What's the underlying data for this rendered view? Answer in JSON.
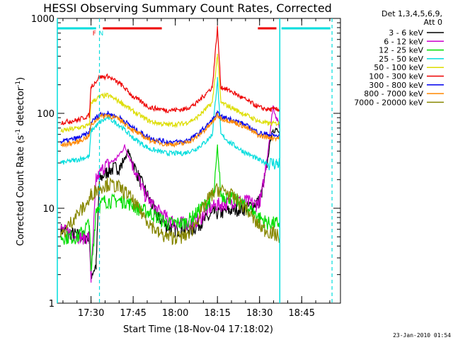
{
  "chart_data": {
    "type": "line",
    "title": "HESSI Observing Summary Count Rates, Corrected",
    "xlabel": "Start Time (18-Nov-04 17:18:02)",
    "ylabel_main": "Corrected Count Rate (s",
    "ylabel_sup1": "-1",
    "ylabel_mid": " detector",
    "ylabel_sup2": "-1",
    "ylabel_end": ")",
    "yscale": "log",
    "ylim": [
      1,
      1000
    ],
    "y_ticks": [
      {
        "value": 1,
        "label": "1"
      },
      {
        "value": 10,
        "label": "10"
      },
      {
        "value": 100,
        "label": "100"
      },
      {
        "value": 1000,
        "label": "1000"
      }
    ],
    "xlim_minutes": [
      17.3,
      18.98
    ],
    "x_ticks": [
      {
        "hour": 17.5,
        "label": "17:30"
      },
      {
        "hour": 17.75,
        "label": "17:45"
      },
      {
        "hour": 18.0,
        "label": "18:00"
      },
      {
        "hour": 18.25,
        "label": "18:15"
      },
      {
        "hour": 18.5,
        "label": "18:30"
      },
      {
        "hour": 18.75,
        "label": "18:45"
      }
    ],
    "legend_header": [
      "Det 1,3,4,5,6,9,",
      "Att 0"
    ],
    "legend_placement": "right",
    "series": [
      {
        "name": "3 - 6 keV",
        "color": "#000000",
        "points": [
          [
            17.32,
            6
          ],
          [
            17.45,
            5
          ],
          [
            17.49,
            5
          ],
          [
            17.5,
            2
          ],
          [
            17.53,
            2.5
          ],
          [
            17.55,
            20
          ],
          [
            17.6,
            25
          ],
          [
            17.68,
            28
          ],
          [
            17.72,
            40
          ],
          [
            17.78,
            22
          ],
          [
            17.85,
            12
          ],
          [
            17.9,
            8
          ],
          [
            17.95,
            6.5
          ],
          [
            18.0,
            6
          ],
          [
            18.05,
            6
          ],
          [
            18.1,
            6
          ],
          [
            18.15,
            7
          ],
          [
            18.2,
            8
          ],
          [
            18.23,
            9
          ],
          [
            18.27,
            9
          ],
          [
            18.32,
            9.5
          ],
          [
            18.38,
            10
          ],
          [
            18.42,
            10
          ],
          [
            18.5,
            12
          ],
          [
            18.53,
            20
          ],
          [
            18.57,
            60
          ],
          [
            18.6,
            70
          ],
          [
            18.62,
            65
          ]
        ]
      },
      {
        "name": "6 - 12 keV",
        "color": "#cc00cc",
        "points": [
          [
            17.32,
            6
          ],
          [
            17.45,
            5
          ],
          [
            17.49,
            5
          ],
          [
            17.5,
            1.8
          ],
          [
            17.53,
            20
          ],
          [
            17.58,
            28
          ],
          [
            17.65,
            33
          ],
          [
            17.7,
            45
          ],
          [
            17.75,
            28
          ],
          [
            17.82,
            14
          ],
          [
            17.88,
            10
          ],
          [
            17.95,
            8
          ],
          [
            18.0,
            7
          ],
          [
            18.05,
            7
          ],
          [
            18.1,
            7
          ],
          [
            18.15,
            8
          ],
          [
            18.2,
            10
          ],
          [
            18.25,
            11
          ],
          [
            18.28,
            11
          ],
          [
            18.35,
            12
          ],
          [
            18.42,
            12
          ],
          [
            18.48,
            11
          ],
          [
            18.51,
            13
          ],
          [
            18.55,
            40
          ],
          [
            18.58,
            120
          ],
          [
            18.6,
            90
          ],
          [
            18.62,
            70
          ]
        ]
      },
      {
        "name": "12 - 25 keV",
        "color": "#00dd00",
        "points": [
          [
            17.32,
            5
          ],
          [
            17.42,
            5
          ],
          [
            17.49,
            7
          ],
          [
            17.5,
            2
          ],
          [
            17.53,
            10
          ],
          [
            17.58,
            12
          ],
          [
            17.65,
            12
          ],
          [
            17.7,
            12
          ],
          [
            17.78,
            10
          ],
          [
            17.85,
            9
          ],
          [
            17.9,
            8
          ],
          [
            17.95,
            7
          ],
          [
            18.0,
            7
          ],
          [
            18.05,
            7
          ],
          [
            18.1,
            8
          ],
          [
            18.15,
            10
          ],
          [
            18.2,
            12
          ],
          [
            18.23,
            14
          ],
          [
            18.25,
            45
          ],
          [
            18.27,
            14
          ],
          [
            18.33,
            13
          ],
          [
            18.4,
            11
          ],
          [
            18.47,
            9
          ],
          [
            18.5,
            8
          ],
          [
            18.55,
            7
          ],
          [
            18.6,
            7
          ],
          [
            18.62,
            7
          ]
        ]
      },
      {
        "name": "25 - 50 keV",
        "color": "#00dddd",
        "points": [
          [
            17.32,
            30
          ],
          [
            17.4,
            32
          ],
          [
            17.49,
            35
          ],
          [
            17.5,
            65
          ],
          [
            17.55,
            80
          ],
          [
            17.6,
            90
          ],
          [
            17.67,
            75
          ],
          [
            17.75,
            55
          ],
          [
            17.85,
            42
          ],
          [
            17.95,
            38
          ],
          [
            18.05,
            38
          ],
          [
            18.12,
            42
          ],
          [
            18.18,
            50
          ],
          [
            18.22,
            60
          ],
          [
            18.25,
            230
          ],
          [
            18.27,
            60
          ],
          [
            18.32,
            50
          ],
          [
            18.4,
            40
          ],
          [
            18.5,
            32
          ],
          [
            18.55,
            30
          ],
          [
            18.6,
            30
          ],
          [
            18.62,
            30
          ]
        ]
      },
      {
        "name": "50 - 100 keV",
        "color": "#dddd00",
        "points": [
          [
            17.32,
            65
          ],
          [
            17.42,
            70
          ],
          [
            17.49,
            75
          ],
          [
            17.5,
            130
          ],
          [
            17.55,
            150
          ],
          [
            17.6,
            155
          ],
          [
            17.68,
            130
          ],
          [
            17.75,
            105
          ],
          [
            17.85,
            82
          ],
          [
            17.95,
            76
          ],
          [
            18.05,
            78
          ],
          [
            18.12,
            88
          ],
          [
            18.18,
            110
          ],
          [
            18.22,
            130
          ],
          [
            18.25,
            420
          ],
          [
            18.27,
            130
          ],
          [
            18.32,
            118
          ],
          [
            18.4,
            100
          ],
          [
            18.5,
            82
          ],
          [
            18.55,
            78
          ],
          [
            18.6,
            78
          ],
          [
            18.62,
            78
          ]
        ]
      },
      {
        "name": "100 - 300 keV",
        "color": "#ee0000",
        "points": [
          [
            17.32,
            80
          ],
          [
            17.42,
            85
          ],
          [
            17.49,
            95
          ],
          [
            17.5,
            190
          ],
          [
            17.55,
            240
          ],
          [
            17.6,
            245
          ],
          [
            17.68,
            200
          ],
          [
            17.75,
            150
          ],
          [
            17.85,
            115
          ],
          [
            17.95,
            108
          ],
          [
            18.05,
            110
          ],
          [
            18.12,
            125
          ],
          [
            18.18,
            160
          ],
          [
            18.22,
            190
          ],
          [
            18.25,
            800
          ],
          [
            18.27,
            190
          ],
          [
            18.32,
            175
          ],
          [
            18.4,
            145
          ],
          [
            18.5,
            115
          ],
          [
            18.55,
            110
          ],
          [
            18.6,
            110
          ],
          [
            18.62,
            110
          ]
        ]
      },
      {
        "name": "300 - 800 keV",
        "color": "#0000ee",
        "points": [
          [
            17.32,
            50
          ],
          [
            17.42,
            55
          ],
          [
            17.49,
            62
          ],
          [
            17.5,
            80
          ],
          [
            17.55,
            98
          ],
          [
            17.6,
            100
          ],
          [
            17.68,
            88
          ],
          [
            17.75,
            70
          ],
          [
            17.85,
            55
          ],
          [
            17.95,
            50
          ],
          [
            18.05,
            50
          ],
          [
            18.12,
            58
          ],
          [
            18.18,
            72
          ],
          [
            18.22,
            85
          ],
          [
            18.25,
            100
          ],
          [
            18.27,
            92
          ],
          [
            18.32,
            88
          ],
          [
            18.4,
            78
          ],
          [
            18.5,
            62
          ],
          [
            18.55,
            60
          ],
          [
            18.6,
            58
          ],
          [
            18.62,
            58
          ]
        ]
      },
      {
        "name": "800 - 7000 keV",
        "color": "#ff8800",
        "points": [
          [
            17.32,
            46
          ],
          [
            17.42,
            50
          ],
          [
            17.49,
            58
          ],
          [
            17.5,
            75
          ],
          [
            17.55,
            92
          ],
          [
            17.6,
            96
          ],
          [
            17.68,
            84
          ],
          [
            17.75,
            66
          ],
          [
            17.85,
            52
          ],
          [
            17.95,
            47
          ],
          [
            18.05,
            48
          ],
          [
            18.12,
            55
          ],
          [
            18.18,
            68
          ],
          [
            18.22,
            80
          ],
          [
            18.25,
            96
          ],
          [
            18.27,
            88
          ],
          [
            18.32,
            84
          ],
          [
            18.4,
            74
          ],
          [
            18.5,
            58
          ],
          [
            18.55,
            56
          ],
          [
            18.6,
            55
          ],
          [
            18.62,
            55
          ]
        ]
      },
      {
        "name": "7000 - 20000 keV",
        "color": "#888800",
        "points": [
          [
            17.32,
            5
          ],
          [
            17.4,
            8
          ],
          [
            17.45,
            10
          ],
          [
            17.49,
            12
          ],
          [
            17.5,
            14
          ],
          [
            17.55,
            17
          ],
          [
            17.6,
            18
          ],
          [
            17.66,
            17
          ],
          [
            17.72,
            14
          ],
          [
            17.78,
            10
          ],
          [
            17.85,
            7
          ],
          [
            17.9,
            5.5
          ],
          [
            17.95,
            5
          ],
          [
            18.0,
            5
          ],
          [
            18.05,
            5
          ],
          [
            18.1,
            6
          ],
          [
            18.15,
            9
          ],
          [
            18.2,
            13
          ],
          [
            18.25,
            16
          ],
          [
            18.3,
            15
          ],
          [
            18.35,
            13
          ],
          [
            18.42,
            10
          ],
          [
            18.48,
            7
          ],
          [
            18.53,
            6
          ],
          [
            18.58,
            5.5
          ],
          [
            18.62,
            5
          ]
        ]
      }
    ],
    "markers": {
      "vertical_lines_cyan_dashed": [
        17.55,
        18.93
      ],
      "vertical_lines_cyan_solid": [
        17.3,
        18.62
      ],
      "top_bars": [
        {
          "color": "#00dddd",
          "from": 17.3,
          "to": 17.53
        },
        {
          "color": "#ee0000",
          "from": 17.57,
          "to": 17.92
        },
        {
          "color": "#ee0000",
          "from": 18.49,
          "to": 18.6
        },
        {
          "color": "#00dddd",
          "from": 18.63,
          "to": 18.92
        }
      ],
      "flag_labels": [
        {
          "text": "F",
          "color": "#ee0000",
          "x": 17.52
        },
        {
          "text": "N",
          "color": "#00dddd",
          "x": 17.56
        }
      ]
    },
    "grid": false
  },
  "footer_date": "23-Jan-2010 01:54"
}
